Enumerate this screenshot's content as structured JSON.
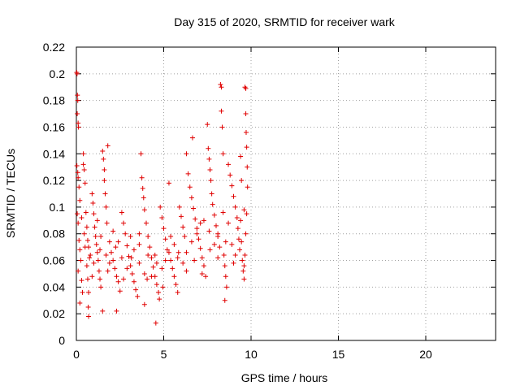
{
  "chart_data": {
    "type": "scatter",
    "title": "Day 315 of 2020, SRMTID for receiver wark",
    "xlabel": "GPS time / hours",
    "ylabel": "SRMTID / TECUs",
    "xlim": [
      0,
      24
    ],
    "ylim": [
      0,
      0.22
    ],
    "x_ticks": [
      0,
      5,
      10,
      15,
      20
    ],
    "x_tick_labels": [
      "0",
      "5",
      "10",
      "15",
      "20"
    ],
    "y_ticks": [
      0,
      0.02,
      0.04,
      0.06,
      0.08,
      0.1,
      0.12,
      0.14,
      0.16,
      0.18,
      0.2,
      0.22
    ],
    "y_tick_labels": [
      "0",
      "0.02",
      "0.04",
      "0.06",
      "0.08",
      "0.1",
      "0.12",
      "0.14",
      "0.16",
      "0.18",
      "0.2",
      "0.22"
    ],
    "grid": true,
    "marker": "+",
    "color": "#e00000",
    "series": [
      {
        "name": "SRMTID",
        "points": [
          [
            0.02,
            0.201
          ],
          [
            0.04,
            0.2
          ],
          [
            0.06,
            0.184
          ],
          [
            0.08,
            0.18
          ],
          [
            0.05,
            0.17
          ],
          [
            0.1,
            0.163
          ],
          [
            0.12,
            0.16
          ],
          [
            0.03,
            0.131
          ],
          [
            0.08,
            0.126
          ],
          [
            0.1,
            0.122
          ],
          [
            0.15,
            0.115
          ],
          [
            0.2,
            0.105
          ],
          [
            0.05,
            0.095
          ],
          [
            0.1,
            0.088
          ],
          [
            0.15,
            0.075
          ],
          [
            0.2,
            0.068
          ],
          [
            0.25,
            0.06
          ],
          [
            0.1,
            0.052
          ],
          [
            0.3,
            0.045
          ],
          [
            0.35,
            0.036
          ],
          [
            0.2,
            0.028
          ],
          [
            0.4,
            0.14
          ],
          [
            0.4,
            0.132
          ],
          [
            0.45,
            0.128
          ],
          [
            0.5,
            0.118
          ],
          [
            0.55,
            0.096
          ],
          [
            0.6,
            0.085
          ],
          [
            0.65,
            0.075
          ],
          [
            0.7,
            0.07
          ],
          [
            0.75,
            0.062
          ],
          [
            0.6,
            0.056
          ],
          [
            0.65,
            0.046
          ],
          [
            0.7,
            0.036
          ],
          [
            0.68,
            0.025
          ],
          [
            0.7,
            0.018
          ],
          [
            0.9,
            0.11
          ],
          [
            0.95,
            0.103
          ],
          [
            1.0,
            0.095
          ],
          [
            1.05,
            0.085
          ],
          [
            1.1,
            0.078
          ],
          [
            1.15,
            0.072
          ],
          [
            1.2,
            0.066
          ],
          [
            1.25,
            0.06
          ],
          [
            1.3,
            0.052
          ],
          [
            1.35,
            0.046
          ],
          [
            1.4,
            0.04
          ],
          [
            1.5,
            0.142
          ],
          [
            1.55,
            0.136
          ],
          [
            1.6,
            0.128
          ],
          [
            1.6,
            0.12
          ],
          [
            1.65,
            0.11
          ],
          [
            1.7,
            0.1
          ],
          [
            1.75,
            0.088
          ],
          [
            1.8,
            0.146
          ],
          [
            1.5,
            0.022
          ],
          [
            1.9,
            0.074
          ],
          [
            2.0,
            0.066
          ],
          [
            2.1,
            0.06
          ],
          [
            2.2,
            0.054
          ],
          [
            2.3,
            0.048
          ],
          [
            2.4,
            0.044
          ],
          [
            2.5,
            0.037
          ],
          [
            2.3,
            0.022
          ],
          [
            2.6,
            0.096
          ],
          [
            2.7,
            0.088
          ],
          [
            2.8,
            0.08
          ],
          [
            2.9,
            0.071
          ],
          [
            3.0,
            0.063
          ],
          [
            3.1,
            0.056
          ],
          [
            3.2,
            0.05
          ],
          [
            3.3,
            0.044
          ],
          [
            3.4,
            0.038
          ],
          [
            3.5,
            0.033
          ],
          [
            3.6,
            0.08
          ],
          [
            3.7,
            0.14
          ],
          [
            3.75,
            0.122
          ],
          [
            3.8,
            0.114
          ],
          [
            3.85,
            0.107
          ],
          [
            3.9,
            0.098
          ],
          [
            4.0,
            0.088
          ],
          [
            4.1,
            0.078
          ],
          [
            4.2,
            0.07
          ],
          [
            4.3,
            0.062
          ],
          [
            4.4,
            0.055
          ],
          [
            4.5,
            0.048
          ],
          [
            4.6,
            0.042
          ],
          [
            4.7,
            0.036
          ],
          [
            4.75,
            0.031
          ],
          [
            4.55,
            0.013
          ],
          [
            3.9,
            0.027
          ],
          [
            4.8,
            0.1
          ],
          [
            4.9,
            0.092
          ],
          [
            5.0,
            0.084
          ],
          [
            5.1,
            0.076
          ],
          [
            5.2,
            0.068
          ],
          [
            5.3,
            0.118
          ],
          [
            5.4,
            0.06
          ],
          [
            5.5,
            0.054
          ],
          [
            5.6,
            0.048
          ],
          [
            5.7,
            0.042
          ],
          [
            5.8,
            0.036
          ],
          [
            5.9,
            0.1
          ],
          [
            6.0,
            0.093
          ],
          [
            6.1,
            0.085
          ],
          [
            6.2,
            0.078
          ],
          [
            6.3,
            0.14
          ],
          [
            6.4,
            0.125
          ],
          [
            6.5,
            0.115
          ],
          [
            6.6,
            0.107
          ],
          [
            6.65,
            0.152
          ],
          [
            6.7,
            0.099
          ],
          [
            6.8,
            0.091
          ],
          [
            6.9,
            0.084
          ],
          [
            7.0,
            0.076
          ],
          [
            7.1,
            0.069
          ],
          [
            7.2,
            0.062
          ],
          [
            7.3,
            0.056
          ],
          [
            7.4,
            0.048
          ],
          [
            7.5,
            0.162
          ],
          [
            7.55,
            0.144
          ],
          [
            7.6,
            0.136
          ],
          [
            7.65,
            0.128
          ],
          [
            7.7,
            0.12
          ],
          [
            7.75,
            0.11
          ],
          [
            7.8,
            0.102
          ],
          [
            7.9,
            0.094
          ],
          [
            8.0,
            0.086
          ],
          [
            8.1,
            0.078
          ],
          [
            8.2,
            0.07
          ],
          [
            8.25,
            0.192
          ],
          [
            8.3,
            0.19
          ],
          [
            8.3,
            0.172
          ],
          [
            8.35,
            0.16
          ],
          [
            8.4,
            0.14
          ],
          [
            8.45,
            0.064
          ],
          [
            8.5,
            0.056
          ],
          [
            8.55,
            0.048
          ],
          [
            8.6,
            0.04
          ],
          [
            8.5,
            0.03
          ],
          [
            8.7,
            0.132
          ],
          [
            8.8,
            0.124
          ],
          [
            8.9,
            0.116
          ],
          [
            9.0,
            0.108
          ],
          [
            9.1,
            0.1
          ],
          [
            9.2,
            0.092
          ],
          [
            9.25,
            0.084
          ],
          [
            9.3,
            0.076
          ],
          [
            9.35,
            0.068
          ],
          [
            9.4,
            0.138
          ],
          [
            9.45,
            0.12
          ],
          [
            9.5,
            0.06
          ],
          [
            9.55,
            0.052
          ],
          [
            9.6,
            0.046
          ],
          [
            9.65,
            0.19
          ],
          [
            9.7,
            0.189
          ],
          [
            9.7,
            0.17
          ],
          [
            9.72,
            0.156
          ],
          [
            9.75,
            0.145
          ],
          [
            9.78,
            0.13
          ],
          [
            9.8,
            0.115
          ],
          [
            9.75,
            0.095
          ],
          [
            9.7,
            0.08
          ],
          [
            9.65,
            0.064
          ],
          [
            9.6,
            0.056
          ],
          [
            0.3,
            0.092
          ],
          [
            0.5,
            0.07
          ],
          [
            0.8,
            0.064
          ],
          [
            1.0,
            0.058
          ],
          [
            1.2,
            0.09
          ],
          [
            1.4,
            0.078
          ],
          [
            1.7,
            0.064
          ],
          [
            1.9,
            0.058
          ],
          [
            2.1,
            0.082
          ],
          [
            2.4,
            0.074
          ],
          [
            2.6,
            0.062
          ],
          [
            2.9,
            0.054
          ],
          [
            3.1,
            0.078
          ],
          [
            3.3,
            0.068
          ],
          [
            3.6,
            0.058
          ],
          [
            3.9,
            0.05
          ],
          [
            4.1,
            0.064
          ],
          [
            4.3,
            0.048
          ],
          [
            4.6,
            0.058
          ],
          [
            4.9,
            0.054
          ],
          [
            5.1,
            0.06
          ],
          [
            5.3,
            0.066
          ],
          [
            5.6,
            0.072
          ],
          [
            5.8,
            0.062
          ],
          [
            6.1,
            0.058
          ],
          [
            6.3,
            0.066
          ],
          [
            6.6,
            0.074
          ],
          [
            6.9,
            0.08
          ],
          [
            7.1,
            0.088
          ],
          [
            7.3,
            0.09
          ],
          [
            7.6,
            0.082
          ],
          [
            7.9,
            0.072
          ],
          [
            8.1,
            0.062
          ],
          [
            8.4,
            0.096
          ],
          [
            8.7,
            0.088
          ],
          [
            8.9,
            0.072
          ],
          [
            9.1,
            0.064
          ],
          [
            9.4,
            0.09
          ],
          [
            9.6,
            0.098
          ],
          [
            0.45,
            0.08
          ],
          [
            0.9,
            0.048
          ],
          [
            1.35,
            0.068
          ],
          [
            1.8,
            0.052
          ],
          [
            2.25,
            0.07
          ],
          [
            2.7,
            0.046
          ],
          [
            3.15,
            0.062
          ],
          [
            3.6,
            0.072
          ],
          [
            4.05,
            0.046
          ],
          [
            4.5,
            0.064
          ],
          [
            4.95,
            0.04
          ],
          [
            5.4,
            0.078
          ],
          [
            5.85,
            0.066
          ],
          [
            6.3,
            0.052
          ],
          [
            6.75,
            0.06
          ],
          [
            7.2,
            0.05
          ],
          [
            7.65,
            0.068
          ],
          [
            8.1,
            0.08
          ],
          [
            8.55,
            0.074
          ],
          [
            9.0,
            0.058
          ],
          [
            9.45,
            0.074
          ]
        ]
      }
    ]
  }
}
